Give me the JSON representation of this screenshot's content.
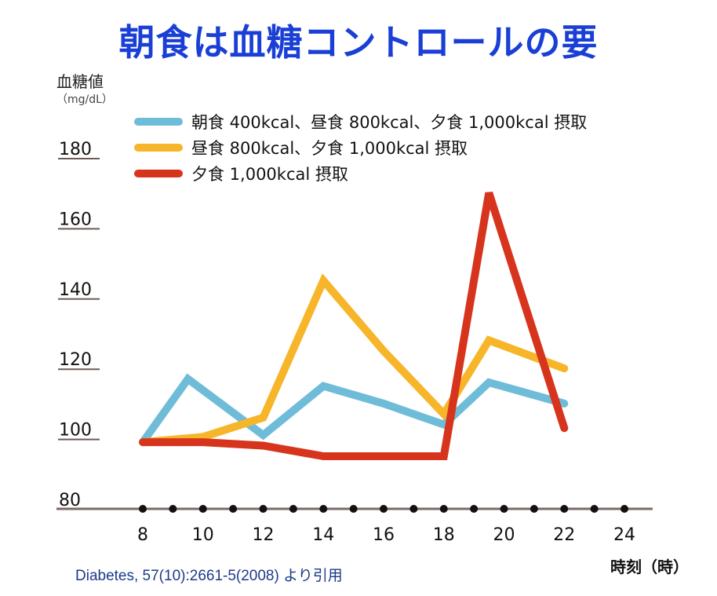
{
  "title": "朝食は血糖コントロールの要",
  "source": "Diabetes, 57(10):2661-5(2008) より引用",
  "chart_data": {
    "type": "line",
    "ylabel": "血糖値",
    "yunit": "（mg/dL）",
    "xlabel": "時刻（時）",
    "ylim": [
      80,
      180
    ],
    "yticks": [
      80,
      100,
      120,
      140,
      160,
      180
    ],
    "xlim": [
      8,
      24
    ],
    "xticks": [
      8,
      10,
      12,
      14,
      16,
      18,
      20,
      22,
      24
    ],
    "grid": false,
    "legend_position": "top",
    "series": [
      {
        "name": "朝食 400kcal、昼食 800kcal、夕食 1,000kcal 摂取",
        "color": "#6fbcd9",
        "x": [
          8,
          9.5,
          12,
          14,
          16,
          18,
          19.5,
          22
        ],
        "values": [
          99,
          117,
          101,
          115,
          110,
          104,
          116,
          110
        ]
      },
      {
        "name": "昼食 800kcal、夕食 1,000kcal 摂取",
        "color": "#f7b52a",
        "x": [
          8,
          10,
          12,
          14,
          16,
          18,
          19.5,
          22
        ],
        "values": [
          99,
          100.5,
          106,
          145,
          125,
          107,
          128,
          120
        ]
      },
      {
        "name": "夕食 1,000kcal 摂取",
        "color": "#d7341e",
        "x": [
          8,
          10,
          12,
          14,
          16,
          18,
          19.5,
          22
        ],
        "values": [
          99,
          99,
          98,
          95,
          95,
          95,
          170,
          103
        ]
      }
    ]
  }
}
